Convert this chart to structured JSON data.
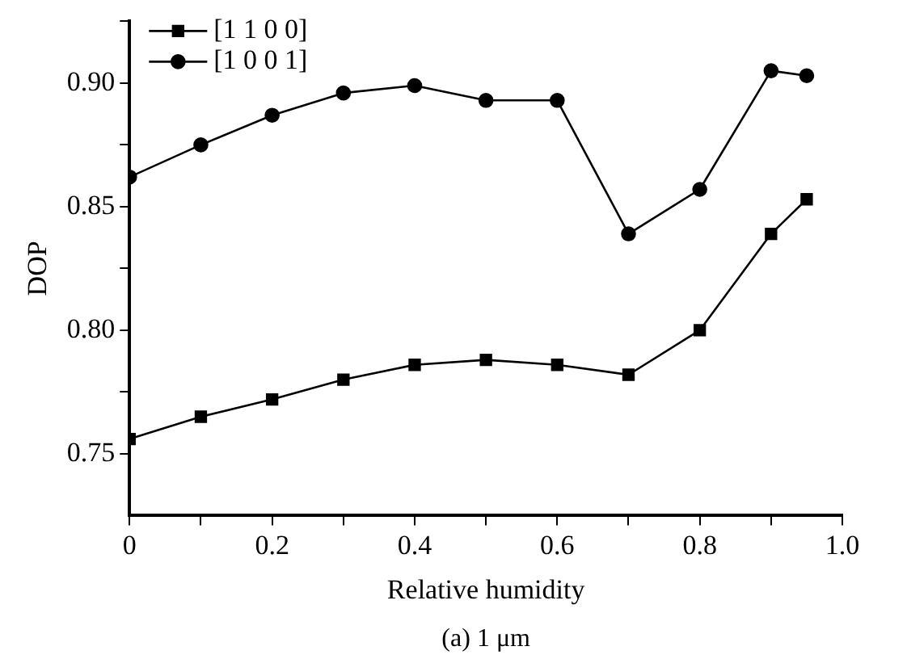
{
  "chart_data": {
    "type": "line",
    "xlabel": "Relative humidity",
    "ylabel": "DOP",
    "annotations": [
      "(a) 1 μm"
    ],
    "x": [
      0,
      0.1,
      0.2,
      0.3,
      0.4,
      0.5,
      0.6,
      0.7,
      0.8,
      0.9,
      0.95
    ],
    "series": [
      {
        "name": "[1 1 0 0]",
        "color": "#000000",
        "marker": "square",
        "values": [
          0.756,
          0.765,
          0.772,
          0.78,
          0.786,
          0.788,
          0.786,
          0.782,
          0.8,
          0.839,
          0.853
        ]
      },
      {
        "name": "[1 0 0 1]",
        "color": "#000000",
        "marker": "circle",
        "values": [
          0.862,
          0.875,
          0.887,
          0.896,
          0.899,
          0.893,
          0.893,
          0.839,
          0.857,
          0.905,
          0.903
        ]
      }
    ],
    "xlim": [
      0,
      1
    ],
    "xticks": [
      0,
      {
        "value": 0.1,
        "label": null
      },
      {
        "value": 0.2,
        "label": "0.2"
      },
      {
        "value": 0.3,
        "label": null
      },
      {
        "value": 0.4,
        "label": "0.4"
      },
      {
        "value": 0.5,
        "label": null
      },
      {
        "value": 0.6,
        "label": "0.6"
      },
      {
        "value": 0.7,
        "label": null
      },
      {
        "value": 0.8,
        "label": "0.8"
      },
      {
        "value": 0.9,
        "label": null
      },
      {
        "value": 1,
        "label": "1.0"
      }
    ],
    "ylim": [
      0.725,
      0.925
    ],
    "yticks": [
      {
        "value": 0.75,
        "label": "0.75"
      },
      {
        "value": 0.775,
        "label": null
      },
      {
        "value": 0.8,
        "label": "0.80"
      },
      {
        "value": 0.825,
        "label": null
      },
      {
        "value": 0.85,
        "label": "0.85"
      },
      {
        "value": 0.875,
        "label": null
      },
      {
        "value": 0.9,
        "label": "0.90"
      },
      {
        "value": 0.925,
        "label": null
      }
    ],
    "grid": false,
    "legend": "top left",
    "line_style": "solid"
  }
}
